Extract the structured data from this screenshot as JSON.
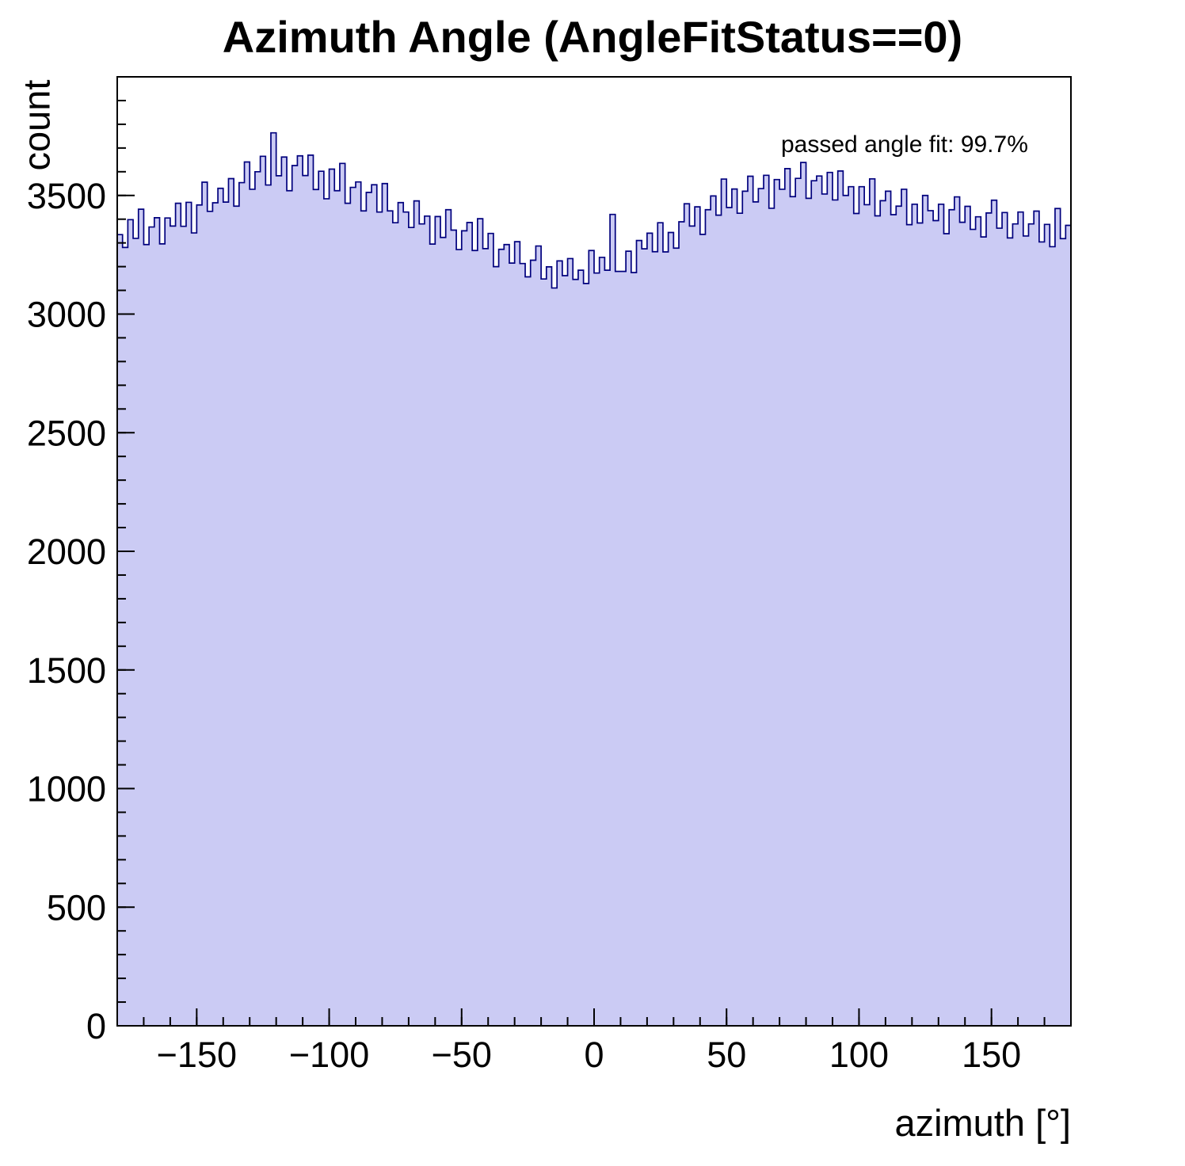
{
  "chart_data": {
    "type": "bar",
    "title": "Azimuth Angle (AngleFitStatus==0)",
    "xlabel": "azimuth [°]",
    "ylabel": "count",
    "annotation": "passed angle fit: 99.7%",
    "xlim": [
      -180,
      180
    ],
    "ylim": [
      0,
      4000
    ],
    "x_ticks_major": [
      -150,
      -100,
      -50,
      0,
      50,
      100,
      150
    ],
    "y_ticks_major": [
      0,
      500,
      1000,
      1500,
      2000,
      2500,
      3000,
      3500
    ],
    "x_minor_step": 10,
    "y_minor_step": 100,
    "x_start": -180,
    "bin_width": 2,
    "grid": false,
    "legend": "none",
    "colors": {
      "fill": "#cbcbf4",
      "line": "#00007d",
      "frame": "#000000"
    },
    "counts": [
      3335,
      3281,
      3398,
      3319,
      3442,
      3293,
      3367,
      3406,
      3296,
      3405,
      3371,
      3467,
      3370,
      3471,
      3342,
      3460,
      3556,
      3433,
      3469,
      3530,
      3472,
      3571,
      3455,
      3554,
      3641,
      3526,
      3600,
      3665,
      3544,
      3764,
      3583,
      3662,
      3520,
      3626,
      3667,
      3584,
      3670,
      3525,
      3602,
      3486,
      3611,
      3520,
      3635,
      3467,
      3534,
      3557,
      3435,
      3513,
      3545,
      3430,
      3550,
      3435,
      3385,
      3470,
      3430,
      3365,
      3477,
      3380,
      3413,
      3295,
      3411,
      3323,
      3440,
      3354,
      3272,
      3351,
      3386,
      3268,
      3402,
      3276,
      3340,
      3200,
      3273,
      3293,
      3215,
      3305,
      3213,
      3157,
      3227,
      3287,
      3148,
      3199,
      3110,
      3224,
      3162,
      3234,
      3146,
      3185,
      3129,
      3268,
      3173,
      3239,
      3185,
      3420,
      3180,
      3180,
      3265,
      3175,
      3310,
      3275,
      3341,
      3263,
      3385,
      3262,
      3344,
      3278,
      3389,
      3465,
      3371,
      3452,
      3336,
      3440,
      3498,
      3417,
      3569,
      3449,
      3527,
      3425,
      3518,
      3581,
      3473,
      3529,
      3585,
      3446,
      3567,
      3526,
      3613,
      3495,
      3572,
      3639,
      3488,
      3562,
      3582,
      3506,
      3597,
      3481,
      3603,
      3500,
      3537,
      3424,
      3537,
      3461,
      3570,
      3414,
      3478,
      3518,
      3419,
      3455,
      3526,
      3377,
      3463,
      3384,
      3500,
      3436,
      3394,
      3463,
      3339,
      3440,
      3494,
      3387,
      3454,
      3357,
      3410,
      3325,
      3426,
      3480,
      3362,
      3428,
      3321,
      3380,
      3430,
      3329,
      3380,
      3434,
      3304,
      3378,
      3284,
      3445,
      3318,
      3374
    ]
  }
}
